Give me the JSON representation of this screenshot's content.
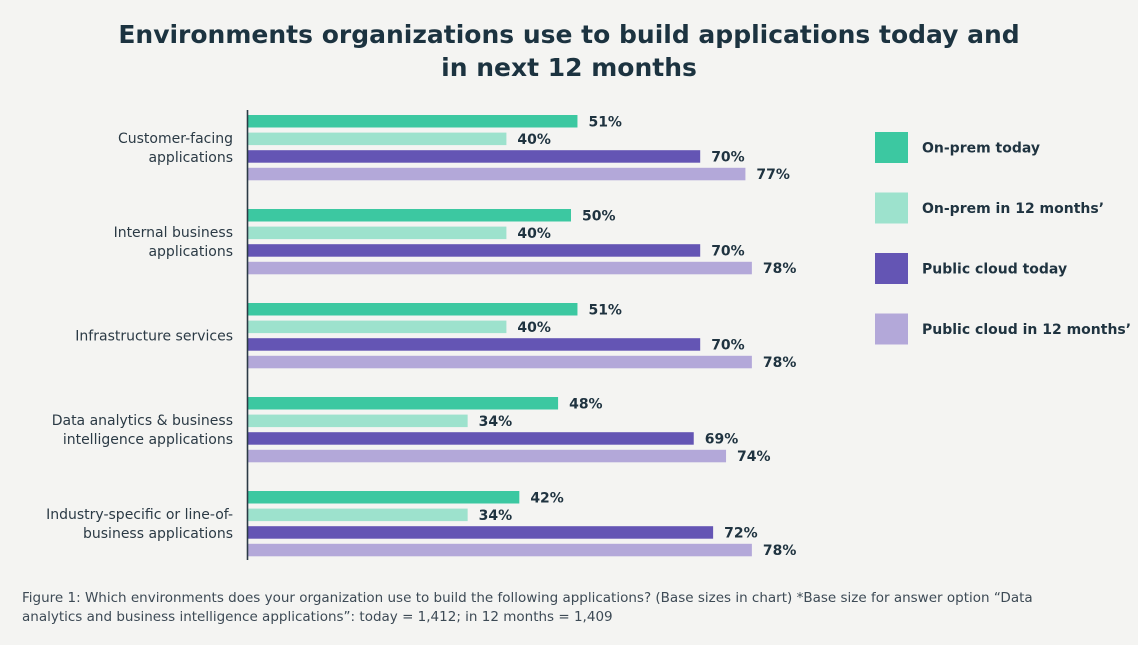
{
  "title_line1": "Environments organizations use to build applications today and",
  "title_line2": "in next 12 months",
  "caption_line1": "Figure 1: Which environments does your organization use to build the following applications? (Base sizes in chart) *Base size for answer option “Data",
  "caption_line2": "analytics and business intelligence applications”: today = 1,412; in 12 months = 1,409",
  "chart_data": {
    "type": "bar",
    "orientation": "horizontal",
    "title": "Environments organizations use to build applications today and in next 12 months",
    "value_unit": "%",
    "xlim": [
      0,
      100
    ],
    "grid": false,
    "legend_position": "right",
    "categories": [
      [
        "Customer-facing",
        "applications"
      ],
      [
        "Internal business",
        "applications"
      ],
      [
        "Infrastructure services"
      ],
      [
        "Data analytics & business",
        "intelligence applications"
      ],
      [
        "Industry-specific or line-of-",
        "business applications"
      ]
    ],
    "series": [
      {
        "name": "On-prem today",
        "color": "#3cc8a1",
        "values": [
          51,
          50,
          51,
          48,
          42
        ]
      },
      {
        "name": "On-prem in 12 months’",
        "color": "#9de2cd",
        "values": [
          40,
          40,
          40,
          34,
          34
        ]
      },
      {
        "name": "Public cloud today",
        "color": "#6455b4",
        "values": [
          70,
          70,
          70,
          69,
          72
        ]
      },
      {
        "name": "Public cloud in 12 months’",
        "color": "#b3a8d9",
        "values": [
          77,
          78,
          78,
          74,
          78
        ]
      }
    ]
  }
}
